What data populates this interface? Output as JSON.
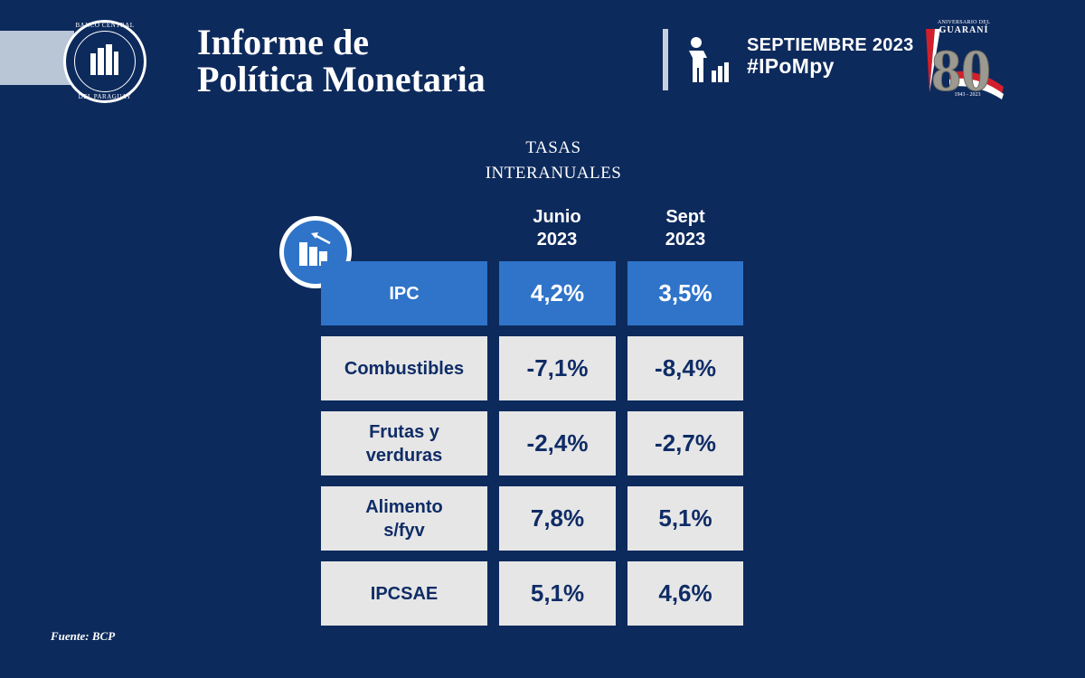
{
  "header": {
    "title_line1": "Informe de",
    "title_line2": "Política Monetaria",
    "date": "SEPTIEMBRE 2023",
    "hashtag": "#IPoMpy",
    "seal_top": "BANCO CENTRAL",
    "seal_bottom": "DEL PARAGUAY",
    "anniversary_small": "ANIVERSARIO DEL",
    "anniversary_name": "GUARANÍ",
    "anniversary_number": "80",
    "anniversary_years": "1943 - 2023",
    "icons": [
      "bank-seal-icon",
      "presenter-chart-icon",
      "anniversary-logo"
    ]
  },
  "section": {
    "title_line1": "TASAS",
    "title_line2": "INTERANUALES",
    "icon": "bar-chart-arrow-icon"
  },
  "table": {
    "columns": [
      {
        "line1": "Junio",
        "line2": "2023"
      },
      {
        "line1": "Sept",
        "line2": "2023"
      }
    ],
    "rows": [
      {
        "label": "IPC",
        "v1": "4,2%",
        "v2": "3,5%",
        "highlight": true
      },
      {
        "label": "Combustibles",
        "v1": "-7,1%",
        "v2": "-8,4%"
      },
      {
        "label": "Frutas y verduras",
        "v1": "-2,4%",
        "v2": "-2,7%"
      },
      {
        "label": "Alimento s/fyv",
        "v1": "7,8%",
        "v2": "5,1%"
      },
      {
        "label": "IPCSAE",
        "v1": "5,1%",
        "v2": "4,6%"
      }
    ]
  },
  "footer": {
    "source": "Fuente: BCP"
  },
  "colors": {
    "background": "#0d2a5c",
    "highlight": "#2f74c9",
    "row": "#e6e6e6",
    "text_dark": "#0f2c66"
  }
}
